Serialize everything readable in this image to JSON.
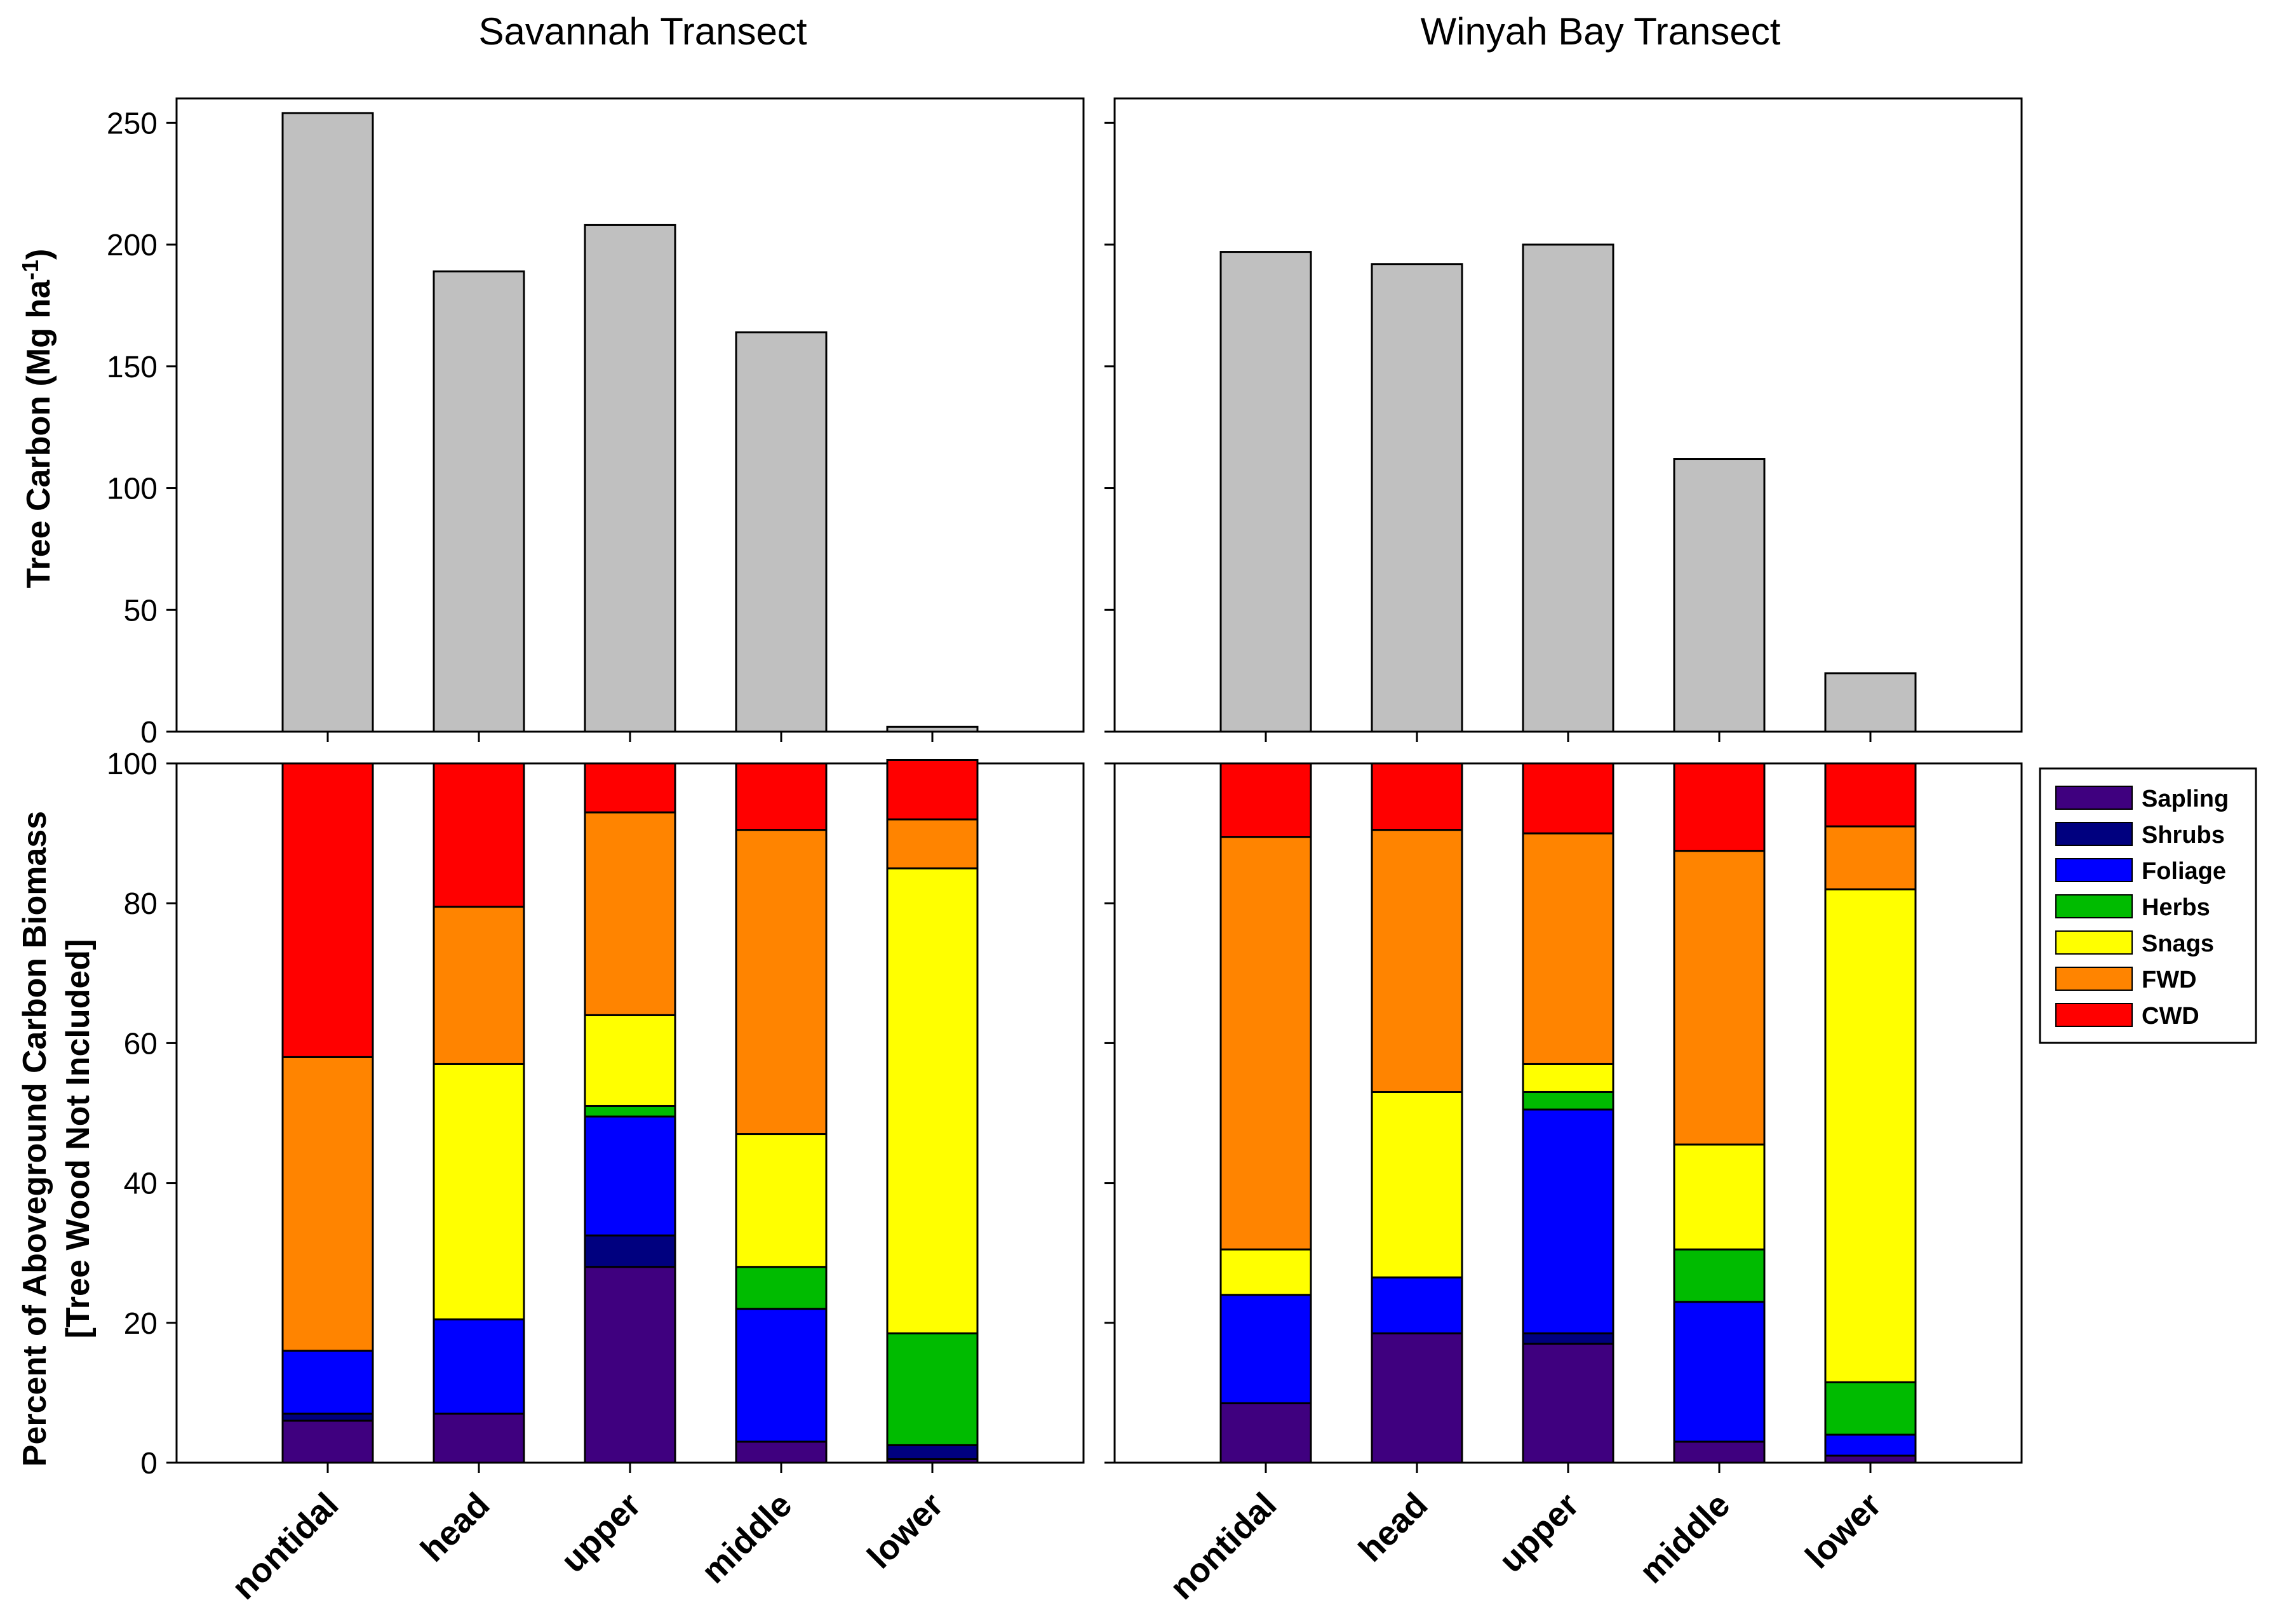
{
  "chart_data": [
    {
      "type": "bar",
      "panel": "top-left",
      "title": "Savannah Transect",
      "ylabel": "Tree Carbon (Mg ha",
      "ylabel_sup": "-1",
      "ylabel_end": ")",
      "ylim": [
        0,
        260
      ],
      "yticks": [
        0,
        50,
        100,
        150,
        200,
        250
      ],
      "categories": [
        "nontidal",
        "head",
        "upper",
        "middle",
        "lower"
      ],
      "values": [
        254,
        189,
        208,
        164,
        2
      ],
      "color": "#c0c0c0"
    },
    {
      "type": "bar",
      "panel": "top-right",
      "title": "Winyah Bay Transect",
      "ylim": [
        0,
        260
      ],
      "categories": [
        "nontidal",
        "head",
        "upper",
        "middle",
        "lower"
      ],
      "values": [
        197,
        192,
        200,
        112,
        24
      ],
      "color": "#c0c0c0"
    },
    {
      "type": "bar",
      "stacked": true,
      "panel": "bottom-left",
      "ylabel": "Percent of Aboveground Carbon Biomass",
      "ylabel2": "[Tree Wood Not Included]",
      "ylim": [
        0,
        100
      ],
      "yticks": [
        0,
        20,
        40,
        60,
        80,
        100
      ],
      "categories": [
        "nontidal",
        "head",
        "upper",
        "middle",
        "lower"
      ],
      "series": [
        {
          "name": "Sapling",
          "color": "#3f007f",
          "values": [
            6,
            7,
            28,
            3,
            0.5
          ]
        },
        {
          "name": "Shrubs",
          "color": "#00007f",
          "values": [
            1,
            0,
            4.5,
            0,
            2
          ]
        },
        {
          "name": "Foliage",
          "color": "#0000ff",
          "values": [
            9,
            13.5,
            17,
            19,
            0
          ]
        },
        {
          "name": "Herbs",
          "color": "#00bb00",
          "values": [
            0,
            0,
            1.5,
            6,
            16
          ]
        },
        {
          "name": "Snags",
          "color": "#ffff00",
          "values": [
            0,
            36.5,
            13,
            19,
            66.5
          ]
        },
        {
          "name": "FWD",
          "color": "#ff8400",
          "values": [
            42,
            22.5,
            29,
            43.5,
            7
          ]
        },
        {
          "name": "CWD",
          "color": "#ff0000",
          "values": [
            42,
            20.5,
            7,
            9.5,
            8.5
          ]
        }
      ]
    },
    {
      "type": "bar",
      "stacked": true,
      "panel": "bottom-right",
      "ylim": [
        0,
        100
      ],
      "categories": [
        "nontidal",
        "head",
        "upper",
        "middle",
        "lower"
      ],
      "series": [
        {
          "name": "Sapling",
          "color": "#3f007f",
          "values": [
            8.5,
            18.5,
            17,
            3,
            1
          ]
        },
        {
          "name": "Shrubs",
          "color": "#00007f",
          "values": [
            0,
            0,
            1.5,
            0,
            0
          ]
        },
        {
          "name": "Foliage",
          "color": "#0000ff",
          "values": [
            15.5,
            8,
            32,
            20,
            3
          ]
        },
        {
          "name": "Herbs",
          "color": "#00bb00",
          "values": [
            0,
            0,
            2.5,
            7.5,
            7.5
          ]
        },
        {
          "name": "Snags",
          "color": "#ffff00",
          "values": [
            6.5,
            26.5,
            4,
            15,
            70.5
          ]
        },
        {
          "name": "FWD",
          "color": "#ff8400",
          "values": [
            59,
            37.5,
            33,
            42,
            9
          ]
        },
        {
          "name": "CWD",
          "color": "#ff0000",
          "values": [
            10.5,
            9.5,
            10,
            12.5,
            9
          ]
        }
      ]
    }
  ],
  "legend": [
    {
      "label": "Sapling",
      "color": "#3f007f"
    },
    {
      "label": "Shrubs",
      "color": "#00007f"
    },
    {
      "label": "Foliage",
      "color": "#0000ff"
    },
    {
      "label": "Herbs",
      "color": "#00bb00"
    },
    {
      "label": "Snags",
      "color": "#ffff00"
    },
    {
      "label": "FWD",
      "color": "#ff8400"
    },
    {
      "label": "CWD",
      "color": "#ff0000"
    }
  ]
}
